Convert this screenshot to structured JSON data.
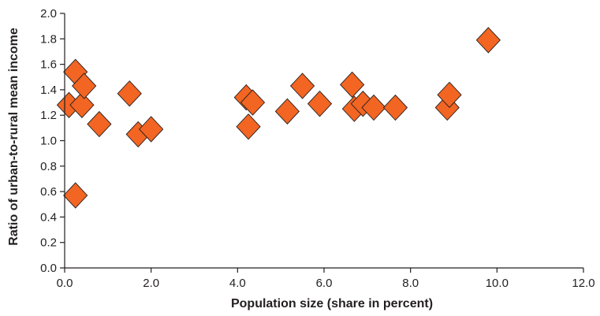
{
  "chart_data": {
    "type": "scatter",
    "title": "",
    "xlabel": "Population size (share in percent)",
    "ylabel": "Ratio of urban-to-rural mean income",
    "xlim": [
      0,
      12
    ],
    "ylim": [
      0,
      2
    ],
    "xticks": [
      0,
      2,
      4,
      6,
      8,
      10,
      12
    ],
    "xtick_labels": [
      "0.0",
      "2.0",
      "4.0",
      "6.0",
      "8.0",
      "10.0",
      "12.0"
    ],
    "yticks": [
      0,
      0.2,
      0.4,
      0.6,
      0.8,
      1.0,
      1.2,
      1.4,
      1.6,
      1.8,
      2.0
    ],
    "ytick_labels": [
      "0.0",
      "0.2",
      "0.4",
      "0.6",
      "0.8",
      "1.0",
      "1.2",
      "1.4",
      "1.6",
      "1.8",
      "2.0"
    ],
    "grid": false,
    "legend": "none",
    "marker": "diamond",
    "marker_color": "#f26522",
    "marker_edge_color": "#231f20",
    "series": [
      {
        "points": [
          {
            "x": 0.1,
            "y": 1.28
          },
          {
            "x": 0.25,
            "y": 1.54
          },
          {
            "x": 0.4,
            "y": 1.28
          },
          {
            "x": 0.45,
            "y": 1.43
          },
          {
            "x": 0.25,
            "y": 0.57
          },
          {
            "x": 0.8,
            "y": 1.13
          },
          {
            "x": 1.5,
            "y": 1.37
          },
          {
            "x": 1.7,
            "y": 1.05
          },
          {
            "x": 2.0,
            "y": 1.09
          },
          {
            "x": 4.2,
            "y": 1.34
          },
          {
            "x": 4.35,
            "y": 1.3
          },
          {
            "x": 4.25,
            "y": 1.11
          },
          {
            "x": 5.15,
            "y": 1.23
          },
          {
            "x": 5.5,
            "y": 1.43
          },
          {
            "x": 5.9,
            "y": 1.29
          },
          {
            "x": 6.65,
            "y": 1.44
          },
          {
            "x": 6.7,
            "y": 1.25
          },
          {
            "x": 6.9,
            "y": 1.29
          },
          {
            "x": 7.15,
            "y": 1.26
          },
          {
            "x": 7.65,
            "y": 1.26
          },
          {
            "x": 8.85,
            "y": 1.26
          },
          {
            "x": 8.9,
            "y": 1.36
          },
          {
            "x": 9.8,
            "y": 1.79
          }
        ]
      }
    ]
  }
}
